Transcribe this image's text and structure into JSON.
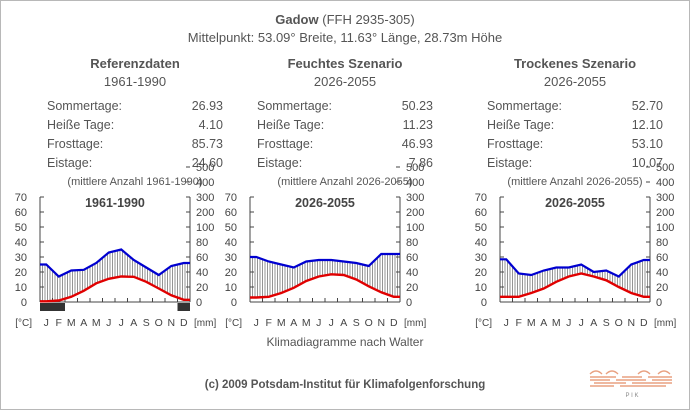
{
  "header": {
    "station": "Gadow",
    "station_code": "(FFH 2935-305)",
    "subtitle": "Mittelpunkt: 53.09° Breite, 11.63° Länge, 28.73m Höhe"
  },
  "stat_labels": [
    "Sommertage:",
    "Heiße Tage:",
    "Frosttage:",
    "Eistage:"
  ],
  "columns": [
    {
      "title": "Referenzdaten",
      "period": "1961-1990",
      "values": [
        "26.93",
        "4.10",
        "85.73",
        "24.60"
      ],
      "note": "(mittlere Anzahl 1961-1990)"
    },
    {
      "title": "Feuchtes Szenario",
      "period": "2026-2055",
      "values": [
        "50.23",
        "11.23",
        "46.93",
        "7.86"
      ],
      "note": "(mittlere Anzahl 2026-2055)"
    },
    {
      "title": "Trockenes Szenario",
      "period": "2026-2055",
      "values": [
        "52.70",
        "12.10",
        "53.10",
        "10.07"
      ],
      "note": "(mittlere Anzahl 2026-2055)"
    }
  ],
  "chart_common": {
    "months": [
      "J",
      "F",
      "M",
      "A",
      "M",
      "J",
      "J",
      "A",
      "S",
      "O",
      "N",
      "D"
    ],
    "left_ticks": [
      0,
      10,
      20,
      30,
      40,
      50,
      60,
      70
    ],
    "right_ticks": [
      0,
      20,
      40,
      60,
      80,
      100,
      200,
      300,
      400,
      500
    ],
    "left_unit": "[°C]",
    "right_unit": "[mm]",
    "colors": {
      "temperature": "#e00000",
      "precipitation": "#0000d0",
      "frost": "#333333",
      "hatch": "#666666",
      "axis": "#444444"
    }
  },
  "chart_data": [
    {
      "type": "line",
      "title": "1961-1990",
      "x": [
        "J",
        "F",
        "M",
        "A",
        "M",
        "J",
        "J",
        "A",
        "S",
        "O",
        "N",
        "D"
      ],
      "series": [
        {
          "axis": "left",
          "unit": "°C",
          "values": [
            0.5,
            1.0,
            3.5,
            7.5,
            12.5,
            15.5,
            17.0,
            16.8,
            13.5,
            9.0,
            4.5,
            1.5
          ]
        },
        {
          "axis": "right",
          "unit": "mm",
          "values": [
            50,
            34,
            42,
            43,
            52,
            66,
            70,
            56,
            46,
            36,
            48,
            52
          ]
        }
      ],
      "frost_months": [
        0,
        1,
        11
      ],
      "ylim_left": [
        0,
        70
      ],
      "ylim_right": [
        0,
        500
      ]
    },
    {
      "type": "line",
      "title": "2026-2055",
      "x": [
        "J",
        "F",
        "M",
        "A",
        "M",
        "J",
        "J",
        "A",
        "S",
        "O",
        "N",
        "D"
      ],
      "series": [
        {
          "axis": "left",
          "unit": "°C",
          "values": [
            3.0,
            3.5,
            6.0,
            9.5,
            14.0,
            17.0,
            18.5,
            18.0,
            15.0,
            10.5,
            6.5,
            3.5
          ]
        },
        {
          "axis": "right",
          "unit": "mm",
          "values": [
            60,
            54,
            50,
            46,
            54,
            56,
            56,
            54,
            52,
            48,
            64,
            64
          ]
        }
      ],
      "frost_months": [],
      "ylim_left": [
        0,
        70
      ],
      "ylim_right": [
        0,
        500
      ]
    },
    {
      "type": "line",
      "title": "2026-2055",
      "x": [
        "J",
        "F",
        "M",
        "A",
        "M",
        "J",
        "J",
        "A",
        "S",
        "O",
        "N",
        "D"
      ],
      "series": [
        {
          "axis": "left",
          "unit": "°C",
          "values": [
            3.5,
            3.5,
            6.0,
            9.0,
            13.5,
            17.0,
            19.0,
            17.0,
            14.5,
            10.0,
            6.0,
            3.5
          ]
        },
        {
          "axis": "right",
          "unit": "mm",
          "values": [
            57,
            38,
            36,
            42,
            46,
            46,
            50,
            40,
            42,
            34,
            50,
            56
          ]
        }
      ],
      "frost_months": [],
      "ylim_left": [
        0,
        70
      ],
      "ylim_right": [
        0,
        500
      ]
    }
  ],
  "footer": {
    "caption": "Klimadiagramme nach Walter",
    "copyright": "(c) 2009 Potsdam-Institut für Klimafolgenforschung",
    "logo_text": "P I K"
  }
}
